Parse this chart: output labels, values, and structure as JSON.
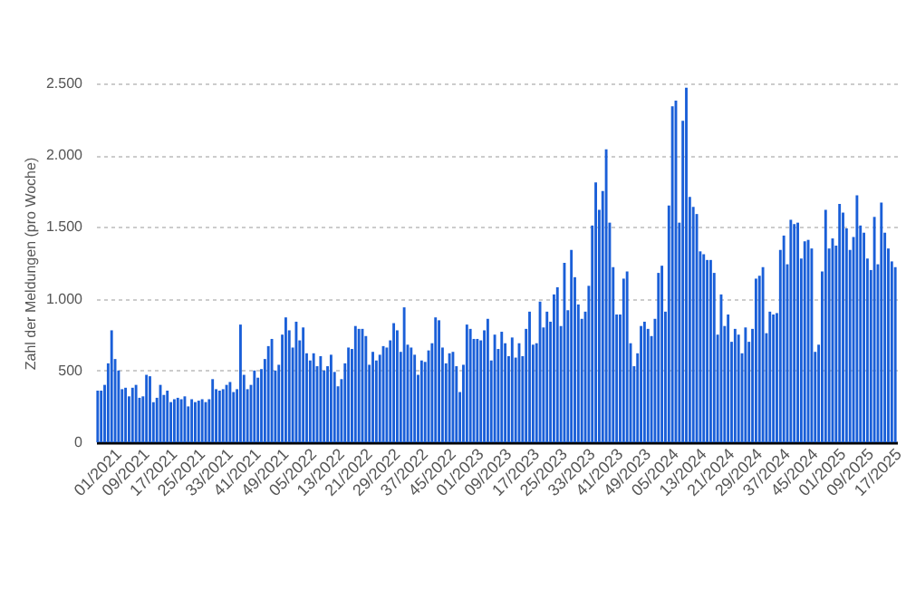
{
  "chart_data": {
    "type": "bar",
    "ylabel": "Zahl der Meldungen (pro Woche)",
    "color": "#1a5fd8",
    "grid": "y",
    "ylim": [
      0,
      2500
    ],
    "yticks": [
      0,
      500,
      {
        "value": 1000,
        "label": "1.000"
      },
      {
        "value": 1500,
        "label": "1.500"
      },
      {
        "value": 2000,
        "label": "2.000"
      },
      {
        "value": 2500,
        "label": "2.500"
      }
    ],
    "categories": [
      "01/2021",
      null,
      null,
      null,
      null,
      null,
      null,
      null,
      "09/2021",
      null,
      null,
      null,
      null,
      null,
      null,
      null,
      "17/2021",
      null,
      null,
      null,
      null,
      null,
      null,
      null,
      "25/2021",
      null,
      null,
      null,
      null,
      null,
      null,
      null,
      "33/2021",
      null,
      null,
      null,
      null,
      null,
      null,
      null,
      "41/2021",
      null,
      null,
      null,
      null,
      null,
      null,
      null,
      "49/2021",
      null,
      null,
      null,
      null,
      null,
      null,
      null,
      "05/2022",
      null,
      null,
      null,
      null,
      null,
      null,
      null,
      "13/2022",
      null,
      null,
      null,
      null,
      null,
      null,
      null,
      "21/2022",
      null,
      null,
      null,
      null,
      null,
      null,
      null,
      "29/2022",
      null,
      null,
      null,
      null,
      null,
      null,
      null,
      "37/2022",
      null,
      null,
      null,
      null,
      null,
      null,
      null,
      "45/2022",
      null,
      null,
      null,
      null,
      null,
      null,
      null,
      "01/2023",
      null,
      null,
      null,
      null,
      null,
      null,
      null,
      "09/2023",
      null,
      null,
      null,
      null,
      null,
      null,
      null,
      "17/2023",
      null,
      null,
      null,
      null,
      null,
      null,
      null,
      "25/2023",
      null,
      null,
      null,
      null,
      null,
      null,
      null,
      "33/2023",
      null,
      null,
      null,
      null,
      null,
      null,
      null,
      "41/2023",
      null,
      null,
      null,
      null,
      null,
      null,
      null,
      "49/2023",
      null,
      null,
      null,
      null,
      null,
      null,
      null,
      "05/2024",
      null,
      null,
      null,
      null,
      null,
      null,
      null,
      "13/2024",
      null,
      null,
      null,
      null,
      null,
      null,
      null,
      "21/2024",
      null,
      null,
      null,
      null,
      null,
      null,
      null,
      "29/2024",
      null,
      null,
      null,
      null,
      null,
      null,
      null,
      "37/2024",
      null,
      null,
      null,
      null,
      null,
      null,
      null,
      "45/2024",
      null,
      null,
      null,
      null,
      null,
      null,
      null,
      "01/2025",
      null,
      null,
      null,
      null,
      null,
      null,
      null,
      "09/2025",
      null,
      null,
      null,
      null,
      null,
      null,
      null,
      "17/2025",
      null,
      null,
      null,
      null,
      null
    ],
    "values": [
      360,
      360,
      400,
      550,
      780,
      580,
      500,
      370,
      380,
      320,
      380,
      400,
      310,
      320,
      470,
      460,
      280,
      310,
      400,
      330,
      360,
      280,
      300,
      310,
      300,
      320,
      250,
      300,
      280,
      290,
      300,
      280,
      300,
      440,
      370,
      360,
      370,
      400,
      420,
      350,
      370,
      820,
      470,
      370,
      400,
      500,
      450,
      510,
      580,
      670,
      720,
      500,
      540,
      750,
      870,
      780,
      660,
      840,
      710,
      800,
      620,
      570,
      620,
      530,
      600,
      500,
      530,
      610,
      490,
      390,
      440,
      550,
      660,
      650,
      810,
      790,
      790,
      740,
      540,
      630,
      570,
      610,
      670,
      660,
      710,
      830,
      780,
      630,
      940,
      680,
      660,
      610,
      470,
      570,
      560,
      640,
      690,
      870,
      850,
      660,
      550,
      620,
      630,
      530,
      350,
      540,
      820,
      790,
      720,
      720,
      710,
      780,
      860,
      570,
      750,
      650,
      770,
      690,
      600,
      730,
      590,
      690,
      600,
      790,
      910,
      680,
      690,
      980,
      800,
      910,
      840,
      1030,
      1080,
      810,
      1250,
      920,
      1340,
      1150,
      960,
      860,
      910,
      1090,
      1510,
      1810,
      1620,
      1750,
      2040,
      1530,
      1220,
      890,
      890,
      1140,
      1190,
      690,
      530,
      620,
      810,
      840,
      790,
      740,
      860,
      1180,
      1230,
      910,
      1650,
      2340,
      2380,
      1530,
      2240,
      2470,
      1710,
      1640,
      1590,
      1330,
      1310,
      1270,
      1270,
      1180,
      750,
      1030,
      810,
      890,
      700,
      790,
      750,
      620,
      800,
      700,
      790,
      1140,
      1160,
      1220,
      760,
      910,
      890,
      900,
      1340,
      1440,
      1240,
      1550,
      1520,
      1530,
      1280,
      1400,
      1410,
      1350,
      630,
      680,
      1190,
      1620,
      1350,
      1420,
      1370,
      1660,
      1600,
      1490,
      1340,
      1430,
      1720,
      1510,
      1460,
      1280,
      1200,
      1570,
      1240,
      1670,
      1460,
      1350,
      1260,
      1220
    ]
  }
}
